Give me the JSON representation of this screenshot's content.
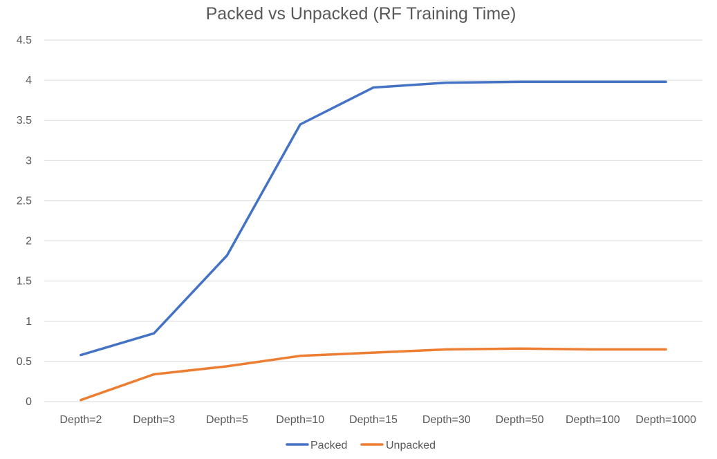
{
  "chart_data": {
    "type": "line",
    "title": "Packed vs Unpacked (RF Training Time)",
    "xlabel": "",
    "ylabel": "",
    "categories": [
      "Depth=2",
      "Depth=3",
      "Depth=5",
      "Depth=10",
      "Depth=15",
      "Depth=30",
      "Depth=50",
      "Depth=100",
      "Depth=1000"
    ],
    "y_ticks": [
      "0",
      "0.5",
      "1",
      "1.5",
      "2",
      "2.5",
      "3",
      "3.5",
      "4",
      "4.5"
    ],
    "ylim": [
      0,
      4.5
    ],
    "grid": true,
    "legend_position": "bottom",
    "series": [
      {
        "name": "Packed",
        "color": "#4472c4",
        "values": [
          0.58,
          0.85,
          1.82,
          3.45,
          3.91,
          3.97,
          3.98,
          3.98,
          3.98
        ]
      },
      {
        "name": "Unpacked",
        "color": "#ed7d31",
        "values": [
          0.02,
          0.34,
          0.44,
          0.57,
          0.61,
          0.65,
          0.66,
          0.65,
          0.65
        ]
      }
    ]
  }
}
